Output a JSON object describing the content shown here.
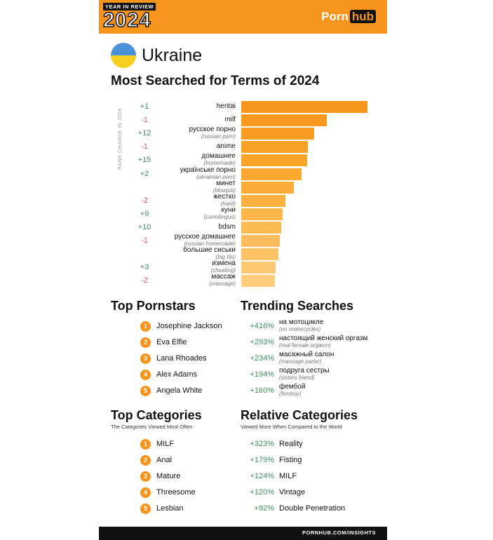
{
  "header": {
    "badge_top": "YEAR IN REVIEW",
    "badge_year": "2024",
    "logo_left": "Porn",
    "logo_right": "hub"
  },
  "country": "Ukraine",
  "search_title": "Most Searched for Terms of 2024",
  "rank_axis_label": "RANK CHANGE IN 2024",
  "chart_data": {
    "type": "bar",
    "orientation": "horizontal",
    "title": "Most Searched for Terms of 2024",
    "categories": [
      "hentai",
      "milf",
      "русское порно",
      "anime",
      "домашнее",
      "українське порно",
      "минет",
      "жестко",
      "куни",
      "bdsm",
      "русское домашнее",
      "большие сиськи",
      "измена",
      "массаж"
    ],
    "translations": [
      "",
      "",
      "(russian porn)",
      "",
      "(homemade)",
      "(ukrainian porn)",
      "(blowjob)",
      "(hard)",
      "(cunnilingus)",
      "",
      "(russian homemade)",
      "(big tits)",
      "(cheating)",
      "(massage)"
    ],
    "rank_change": [
      "+1",
      "-1",
      "+12",
      "-1",
      "+15",
      "+2",
      "",
      "-2",
      "+9",
      "+10",
      "-1",
      "",
      "+3",
      "-2"
    ],
    "values": [
      180,
      122,
      104,
      95,
      94,
      86,
      75,
      63,
      59,
      57,
      55,
      53,
      49,
      48
    ],
    "colors": [
      "#f7941d",
      "#f8981f",
      "#f99d22",
      "#f9a126",
      "#f9a52a",
      "#faa830",
      "#fbad38",
      "#fbb140",
      "#fcb649",
      "#fcba52",
      "#fcbe5c",
      "#fdc366",
      "#fdc872",
      "#fdcc7c"
    ]
  },
  "pornstars": {
    "title": "Top Pornstars",
    "items": [
      {
        "rank": "1",
        "name": "Josephine Jackson"
      },
      {
        "rank": "2",
        "name": "Eva Elfie"
      },
      {
        "rank": "3",
        "name": "Lana Rhoades"
      },
      {
        "rank": "4",
        "name": "Alex Adams"
      },
      {
        "rank": "5",
        "name": "Angela White"
      }
    ]
  },
  "trending": {
    "title": "Trending Searches",
    "items": [
      {
        "pct": "+416%",
        "term": "на мотоцикле",
        "tr": "(on motorcycles)"
      },
      {
        "pct": "+293%",
        "term": "настоящий женский оргазм",
        "tr": "(real female orgasm)"
      },
      {
        "pct": "+234%",
        "term": "масажный салон",
        "tr": "(massage parlor)"
      },
      {
        "pct": "+194%",
        "term": "подруга сестры",
        "tr": "(sisters friend)"
      },
      {
        "pct": "+160%",
        "term": "фембой",
        "tr": "(femboy)"
      }
    ]
  },
  "categories": {
    "title": "Top Categories",
    "subtitle": "The Categories Viewed Most Often",
    "items": [
      {
        "rank": "1",
        "name": "MILF"
      },
      {
        "rank": "2",
        "name": "Anal"
      },
      {
        "rank": "3",
        "name": "Mature"
      },
      {
        "rank": "4",
        "name": "Threesome"
      },
      {
        "rank": "5",
        "name": "Lesbian"
      }
    ]
  },
  "relative": {
    "title": "Relative Categories",
    "subtitle": "Viewed More When Compared to the World",
    "items": [
      {
        "pct": "+323%",
        "name": "Reality"
      },
      {
        "pct": "+179%",
        "name": "Fisting"
      },
      {
        "pct": "+124%",
        "name": "MILF"
      },
      {
        "pct": "+120%",
        "name": "Vintage"
      },
      {
        "pct": "+92%",
        "name": "Double Penetration"
      }
    ]
  },
  "footer": "PORNHUB.COM/INSIGHTS"
}
